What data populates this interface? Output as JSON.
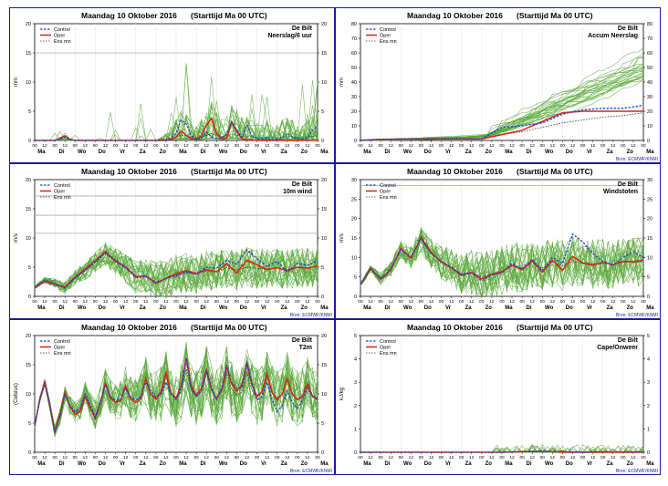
{
  "page_title": "Maandag 10 Oktober 2016",
  "start_time": "(Starttijd Ma 00 UTC)",
  "station": "De Bilt",
  "source": "Bron: ECMWF/KNMI",
  "legend": [
    "Control",
    "Oper",
    "Ens mn"
  ],
  "hour_ticks": [
    "00",
    "12",
    "00",
    "12",
    "00",
    "12",
    "00",
    "12",
    "00",
    "12",
    "00",
    "12",
    "00",
    "12",
    "00",
    "12",
    "00",
    "12",
    "00",
    "12",
    "00",
    "12",
    "00",
    "12",
    "00",
    "12",
    "00",
    "12",
    "00"
  ],
  "day_labels": [
    "Ma",
    "Di",
    "Wo",
    "Do",
    "Vr",
    "Za",
    "Zo",
    "Ma",
    "Di",
    "Wo",
    "Do",
    "Vr",
    "Za",
    "Zo",
    "Ma"
  ],
  "colors": {
    "frame": "#1a1aa0",
    "control": "#1f3fd8",
    "oper": "#e02010",
    "ens": "#58a838",
    "ensmean": "#333333",
    "grid": "#c8c8c8"
  },
  "chart_data": [
    {
      "type": "line",
      "panel": "neerslag",
      "variable": "Neerslag/6 uur",
      "ylabel": "mm",
      "ylim": [
        0,
        20
      ],
      "yticks": [
        0,
        5,
        10,
        15,
        20
      ],
      "hlines": [
        15
      ],
      "kind": "precip",
      "x_unit": "hours since Ma 00 UTC",
      "xlim": [
        0,
        336
      ],
      "x": [
        0,
        6,
        12,
        18,
        24,
        30,
        36,
        42,
        48,
        54,
        60,
        66,
        72,
        78,
        84,
        90,
        96,
        102,
        108,
        114,
        120,
        126,
        132,
        138,
        144,
        150,
        156,
        162,
        168,
        174,
        180,
        186,
        192,
        198,
        204,
        210,
        216,
        222,
        228,
        234,
        240,
        246,
        252,
        258,
        264,
        270,
        276,
        282,
        288,
        294,
        300,
        306,
        312,
        318,
        324,
        330,
        336
      ],
      "series": [
        {
          "name": "Control",
          "values": [
            0,
            0,
            0,
            0,
            0,
            0.3,
            0.6,
            0.2,
            0,
            0,
            0,
            0,
            0,
            0,
            0,
            0,
            0,
            0,
            0,
            0,
            0,
            0,
            0,
            0,
            0,
            0,
            0,
            0.5,
            1.2,
            3.5,
            2.8,
            0.8,
            0.2,
            0.4,
            1.4,
            0.6,
            0.3,
            0.5,
            1.0,
            3.2,
            1.8,
            0.5,
            2.6,
            0.8,
            0.3,
            0.2,
            0.3,
            0.1,
            0.2,
            0.4,
            1.2,
            0.6,
            0.3,
            0.2,
            0.4,
            1.8,
            2.5
          ]
        },
        {
          "name": "Oper",
          "values": [
            0,
            0,
            0,
            0,
            0,
            0.4,
            0.8,
            0.2,
            0,
            0,
            0,
            0,
            0,
            0,
            0,
            0,
            0,
            0,
            0,
            0,
            0,
            0,
            0,
            0,
            0,
            0,
            0,
            0.2,
            0.6,
            1.6,
            0.9,
            0.3,
            0.2,
            0.8,
            2.6,
            3.8,
            1.2,
            0.3,
            0.4,
            3.2,
            1.5,
            0.3,
            0.1,
            0.1,
            0,
            0,
            0,
            0,
            0,
            0,
            0,
            0,
            0,
            0,
            0,
            0,
            0
          ]
        },
        {
          "name": "Ens mn",
          "values": [
            0,
            0,
            0,
            0,
            0,
            0.2,
            0.3,
            0.1,
            0,
            0,
            0,
            0,
            0,
            0,
            0,
            0,
            0,
            0,
            0,
            0,
            0,
            0,
            0,
            0,
            0,
            0.1,
            0.2,
            0.4,
            0.6,
            0.9,
            0.8,
            0.5,
            0.4,
            0.6,
            0.9,
            1.2,
            0.8,
            0.6,
            0.7,
            1.1,
            0.9,
            0.7,
            0.8,
            0.6,
            0.5,
            0.5,
            0.6,
            0.5,
            0.5,
            0.6,
            0.7,
            0.6,
            0.5,
            0.5,
            0.6,
            0.7,
            0.8
          ]
        }
      ]
    },
    {
      "type": "line",
      "panel": "accum",
      "variable": "Accum Neerslag",
      "ylabel": "mm",
      "ylim": [
        0,
        80
      ],
      "yticks": [
        0,
        10,
        20,
        30,
        40,
        50,
        60,
        70,
        80
      ],
      "hlines": [],
      "kind": "accum",
      "x_unit": "hours since Ma 00 UTC",
      "xlim": [
        0,
        336
      ],
      "x": [
        0,
        24,
        48,
        72,
        96,
        120,
        144,
        168,
        192,
        216,
        240,
        264,
        288,
        312,
        336
      ],
      "series": [
        {
          "name": "Control",
          "values": [
            0,
            0.5,
            1,
            1,
            1,
            1,
            1,
            9,
            10,
            12,
            18,
            21,
            22,
            22,
            24
          ]
        },
        {
          "name": "Oper",
          "values": [
            0,
            0.6,
            1,
            1,
            1,
            1,
            1,
            4,
            7,
            13,
            19,
            20,
            20,
            20,
            20
          ]
        },
        {
          "name": "Ens mn",
          "values": [
            0,
            0.3,
            0.6,
            0.7,
            0.8,
            0.9,
            1.5,
            4,
            6,
            9,
            12,
            14,
            16,
            17,
            19
          ]
        }
      ]
    },
    {
      "type": "line",
      "panel": "wind",
      "variable": "10m wind",
      "ylabel": "m/s",
      "ylim": [
        0,
        20
      ],
      "yticks": [
        0,
        5,
        10,
        15,
        20
      ],
      "hlines": [
        10.8,
        13.9,
        17.2
      ],
      "kind": "wind",
      "x_unit": "hours since Ma 00 UTC",
      "xlim": [
        0,
        336
      ],
      "x": [
        0,
        12,
        24,
        36,
        48,
        60,
        72,
        84,
        96,
        108,
        120,
        132,
        144,
        156,
        168,
        180,
        192,
        204,
        216,
        228,
        240,
        252,
        264,
        276,
        288,
        300,
        312,
        324,
        336
      ],
      "series": [
        {
          "name": "Control",
          "values": [
            1.5,
            2.8,
            2.2,
            1.4,
            3.2,
            4.5,
            6.0,
            7.5,
            6.2,
            5.0,
            3.2,
            3.4,
            2.3,
            3.1,
            3.5,
            4.2,
            3.8,
            5.0,
            4.8,
            6.2,
            5.5,
            8.0,
            6.5,
            5.1,
            6.0,
            4.2,
            5.6,
            5.3,
            6.1
          ]
        },
        {
          "name": "Oper",
          "values": [
            1.4,
            2.6,
            2.0,
            1.6,
            3.3,
            4.7,
            6.1,
            7.7,
            6.0,
            5.1,
            3.4,
            3.5,
            2.2,
            3.1,
            3.9,
            4.4,
            3.9,
            4.6,
            4.2,
            5.6,
            4.0,
            6.2,
            5.4,
            4.6,
            4.9,
            4.4,
            5.0,
            4.8,
            5.2
          ]
        },
        {
          "name": "Ens mn",
          "values": [
            1.5,
            2.7,
            2.1,
            1.6,
            3.1,
            4.4,
            5.8,
            7.3,
            5.9,
            4.8,
            3.3,
            3.5,
            2.5,
            3.0,
            3.7,
            4.0,
            3.8,
            4.4,
            4.2,
            4.9,
            4.5,
            5.0,
            4.8,
            4.7,
            4.9,
            4.6,
            5.0,
            4.9,
            5.1
          ]
        }
      ]
    },
    {
      "type": "line",
      "panel": "windstoten",
      "variable": "Windstoten",
      "ylabel": "m/s",
      "ylim": [
        0,
        30
      ],
      "yticks": [
        0,
        5,
        10,
        15,
        20,
        25,
        30
      ],
      "hlines": [
        28.5
      ],
      "kind": "gust",
      "x_unit": "hours since Ma 00 UTC",
      "xlim": [
        0,
        336
      ],
      "x": [
        0,
        12,
        24,
        36,
        48,
        60,
        72,
        84,
        96,
        108,
        120,
        132,
        144,
        156,
        168,
        180,
        192,
        204,
        216,
        228,
        240,
        252,
        264,
        276,
        288,
        300,
        312,
        324,
        336
      ],
      "series": [
        {
          "name": "Control",
          "values": [
            3,
            7,
            4.5,
            7,
            12,
            10,
            15,
            11,
            9,
            7.5,
            5.5,
            6,
            4,
            5.5,
            6,
            8.5,
            7,
            9.5,
            6.5,
            10,
            8.5,
            16,
            14,
            11,
            9,
            8,
            10,
            11.5,
            10
          ]
        },
        {
          "name": "Oper",
          "values": [
            3,
            7.2,
            4.3,
            6.8,
            12.3,
            9.8,
            15.2,
            11.3,
            8.8,
            7.3,
            5.4,
            6.1,
            4.5,
            5.6,
            6.3,
            8.0,
            6.8,
            9.1,
            6.2,
            9.3,
            6.7,
            10.3,
            8.6,
            8.0,
            8.7,
            8.1,
            9.0,
            8.9,
            9.3
          ]
        },
        {
          "name": "Ens mn",
          "values": [
            3.2,
            7.0,
            4.6,
            7.0,
            11.8,
            10.0,
            14.6,
            11.0,
            8.8,
            7.4,
            5.8,
            6.2,
            5.0,
            5.8,
            6.5,
            7.8,
            7.0,
            8.5,
            7.2,
            8.8,
            7.9,
            9.0,
            8.5,
            8.3,
            8.6,
            8.2,
            8.8,
            8.7,
            9.0
          ]
        }
      ]
    },
    {
      "type": "line",
      "panel": "t2m",
      "variable": "T2m",
      "ylabel": "(Celsius)",
      "ylim": [
        0,
        20
      ],
      "yticks": [
        0,
        5,
        10,
        15,
        20
      ],
      "hlines": [],
      "kind": "temp",
      "x_unit": "hours since Ma 00 UTC",
      "xlim": [
        0,
        336
      ],
      "x": [
        0,
        6,
        12,
        18,
        24,
        30,
        36,
        42,
        48,
        54,
        60,
        66,
        72,
        78,
        84,
        90,
        96,
        102,
        108,
        114,
        120,
        126,
        132,
        138,
        144,
        150,
        156,
        162,
        168,
        174,
        180,
        186,
        192,
        198,
        204,
        210,
        216,
        222,
        228,
        234,
        240,
        246,
        252,
        258,
        264,
        270,
        276,
        282,
        288,
        294,
        300,
        306,
        312,
        318,
        324,
        330,
        336
      ],
      "series": [
        {
          "name": "Control",
          "values": [
            4.5,
            9,
            12,
            8,
            3.5,
            6,
            10,
            8,
            7,
            7.5,
            10,
            8,
            6,
            8.5,
            11.5,
            9.5,
            9,
            9,
            11,
            9.5,
            9,
            9.5,
            12,
            10.5,
            9.5,
            10,
            12,
            10,
            9,
            11,
            16,
            11,
            9.5,
            10.5,
            14,
            11,
            9,
            11,
            15,
            12,
            11,
            11,
            15.5,
            12,
            9,
            9.5,
            12,
            9,
            7,
            8,
            10.5,
            8.5,
            7.5,
            9,
            11,
            9.5,
            9
          ]
        },
        {
          "name": "Oper",
          "values": [
            4.5,
            9,
            12.2,
            8,
            3.5,
            6.5,
            10.2,
            7.8,
            6.5,
            7,
            9.6,
            7.6,
            5.8,
            8.5,
            11.8,
            9.3,
            8.6,
            8.8,
            11.4,
            9.1,
            8.5,
            9.2,
            12.6,
            9.9,
            9.1,
            10.4,
            13.6,
            10.1,
            9.3,
            11.4,
            16.2,
            11.4,
            9.8,
            10.9,
            14.2,
            10.8,
            9.2,
            10.7,
            14.6,
            11.7,
            10.5,
            11.5,
            15.2,
            11.6,
            9.6,
            10.4,
            13.4,
            10.2,
            9.0,
            10.0,
            12.6,
            10.0,
            9.0,
            9.6,
            11.6,
            9.6,
            9.2
          ]
        },
        {
          "name": "Ens mn",
          "values": [
            4.6,
            9,
            12,
            8,
            3.8,
            6.4,
            10,
            7.9,
            6.8,
            7.3,
            10,
            7.9,
            6.4,
            8.6,
            11.7,
            9.4,
            8.8,
            8.9,
            11.4,
            9.3,
            8.8,
            9.4,
            12.3,
            10,
            9.3,
            10,
            12.9,
            10,
            9.2,
            10.5,
            14.2,
            10.7,
            9.5,
            10.4,
            13.4,
            10.6,
            9.4,
            10.3,
            13.6,
            10.8,
            9.8,
            10.3,
            13.7,
            10.6,
            9.5,
            10.1,
            12.9,
            10.2,
            9.3,
            9.9,
            12.5,
            9.9,
            9.2,
            9.7,
            12.1,
            9.8,
            9.3
          ]
        }
      ]
    },
    {
      "type": "line",
      "panel": "cape",
      "variable": "Cape/Onweer",
      "ylabel": "kJ/kg",
      "ylim": [
        0,
        5
      ],
      "yticks": [
        0,
        1,
        2,
        3,
        4,
        5
      ],
      "hlines": [],
      "kind": "cape",
      "x_unit": "hours since Ma 00 UTC",
      "xlim": [
        0,
        336
      ],
      "x": [
        0,
        48,
        96,
        144,
        168,
        192,
        216,
        240,
        264,
        288,
        312,
        336
      ],
      "series": [
        {
          "name": "Control",
          "values": [
            0,
            0,
            0,
            0,
            0,
            0.02,
            0.05,
            0.02,
            0,
            0.02,
            0.02,
            0
          ]
        },
        {
          "name": "Oper",
          "values": [
            0,
            0,
            0,
            0,
            0,
            0.03,
            0.04,
            0,
            0,
            0,
            0,
            0
          ]
        },
        {
          "name": "Ens mn",
          "values": [
            0,
            0,
            0,
            0,
            0,
            0.02,
            0.03,
            0.03,
            0.02,
            0.02,
            0.01,
            0.01
          ]
        }
      ]
    }
  ]
}
